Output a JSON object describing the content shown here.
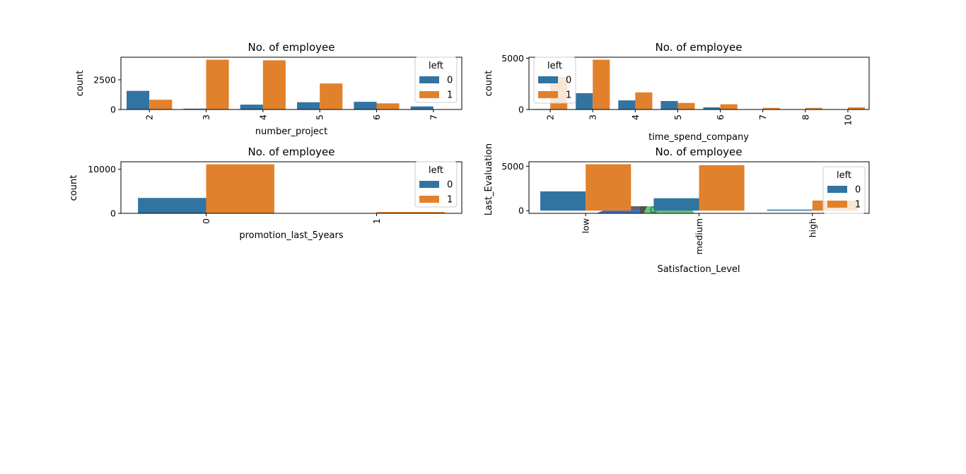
{
  "colors": {
    "series0": "#3274a1",
    "series1": "#e1812c",
    "legend_frame": "#cccccc"
  },
  "chart_data": [
    {
      "type": "bar",
      "title": "No. of employee",
      "xlabel": "number_project",
      "ylabel": "count",
      "categories": [
        "2",
        "3",
        "4",
        "5",
        "6",
        "7"
      ],
      "series": [
        {
          "name": "0",
          "values": [
            1570,
            70,
            410,
            610,
            650,
            260
          ]
        },
        {
          "name": "1",
          "values": [
            820,
            4190,
            4140,
            2190,
            520,
            0
          ]
        }
      ],
      "ylim": [
        0,
        4400
      ],
      "yticks": [
        0,
        2500
      ],
      "legend": {
        "title": "left",
        "location": "upper right"
      }
    },
    {
      "type": "bar",
      "title": "No. of employee",
      "xlabel": "time_spend_company",
      "ylabel": "count",
      "categories": [
        "2",
        "3",
        "4",
        "5",
        "6",
        "7",
        "8",
        "10"
      ],
      "series": [
        {
          "name": "0",
          "values": [
            50,
            1590,
            890,
            830,
            210,
            0,
            0,
            0
          ]
        },
        {
          "name": "1",
          "values": [
            3190,
            4860,
            1670,
            640,
            510,
            160,
            160,
            210
          ]
        }
      ],
      "ylim": [
        0,
        5100
      ],
      "yticks": [
        0,
        5000
      ],
      "legend": {
        "title": "left",
        "location": "upper left"
      }
    },
    {
      "type": "bar",
      "title": "No. of employee",
      "xlabel": "promotion_last_5years",
      "ylabel": "count",
      "categories": [
        "0",
        "1"
      ],
      "series": [
        {
          "name": "0",
          "values": [
            3500,
            20
          ]
        },
        {
          "name": "1",
          "values": [
            11130,
            300
          ]
        }
      ],
      "ylim": [
        0,
        11700
      ],
      "yticks": [
        0,
        10000
      ],
      "legend": {
        "title": "left",
        "location": "upper right"
      }
    },
    {
      "type": "bar",
      "title": "No. of employee",
      "xlabel": "Satisfaction_Level",
      "ylabel": "Last_Evaluation",
      "categories": [
        "low",
        "medium",
        "high"
      ],
      "series": [
        {
          "name": "0",
          "values": [
            2170,
            1400,
            120
          ]
        },
        {
          "name": "1",
          "values": [
            5220,
            5120,
            1140
          ]
        }
      ],
      "ylim": [
        -300,
        5500
      ],
      "yticks": [
        0,
        5000
      ],
      "legend": {
        "title": "left",
        "location": "upper right"
      }
    }
  ]
}
